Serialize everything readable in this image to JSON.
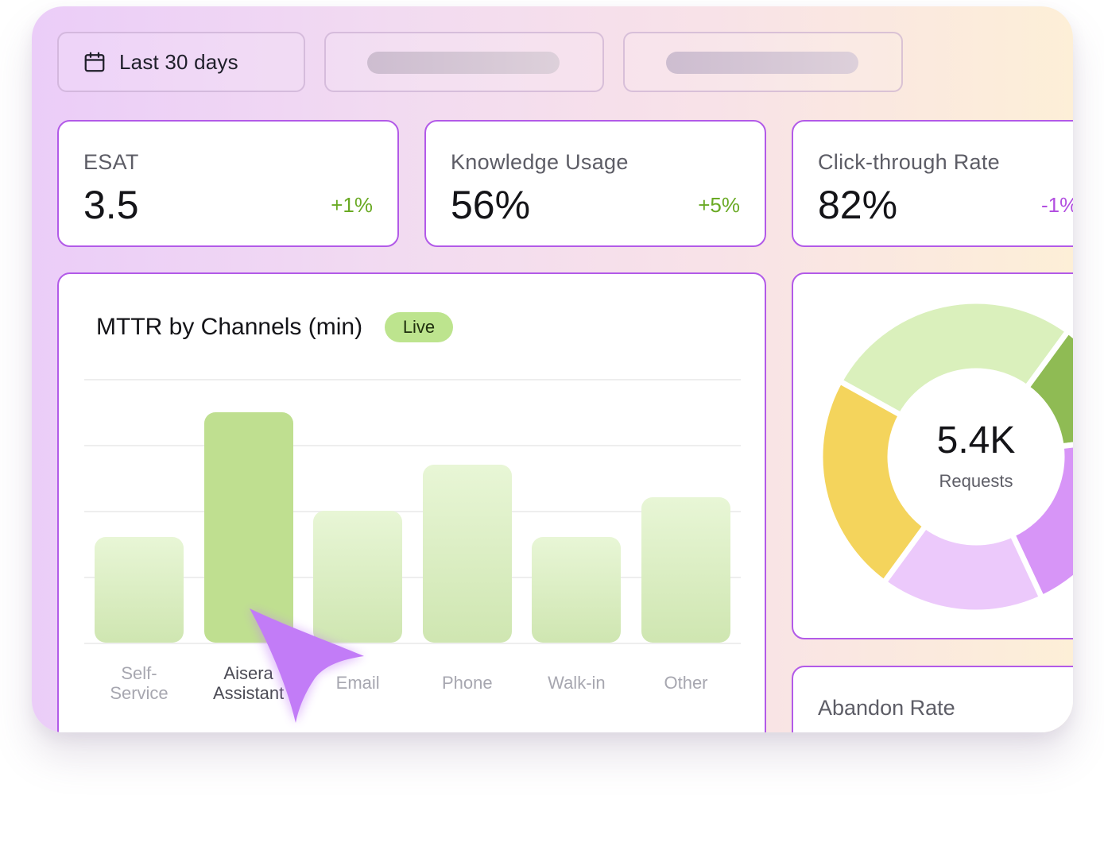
{
  "filters": {
    "date_label": "Last 30 days"
  },
  "kpis": [
    {
      "label": "ESAT",
      "value": "3.5",
      "delta": "+1%",
      "delta_color": "#6aaa24"
    },
    {
      "label": "Knowledge Usage",
      "value": "56%",
      "delta": "+5%",
      "delta_color": "#6aaa24"
    },
    {
      "label": "Click-through Rate",
      "value": "82%",
      "delta": "-1%",
      "delta_color": "#b24fe0"
    }
  ],
  "mttr_chart": {
    "title": "MTTR by Channels (min)",
    "badge": "Live",
    "xlabels": [
      "Self-\nService",
      "Aisera\nAssistant",
      "Email",
      "Phone",
      "Walk-in",
      "Other"
    ]
  },
  "chart_data": [
    {
      "type": "bar",
      "title": "MTTR by Channels (min)",
      "categories": [
        "Self-Service",
        "Aisera Assistant",
        "Email",
        "Phone",
        "Walk-in",
        "Other"
      ],
      "values": [
        1.6,
        3.5,
        2.0,
        2.7,
        1.6,
        2.2
      ],
      "ylim": [
        0,
        4
      ],
      "grid": true,
      "highlight": "Aisera Assistant"
    },
    {
      "type": "pie",
      "subtype": "donut",
      "center_value": "5.4K",
      "center_label": "Requests",
      "slices": [
        {
          "value": 27,
          "color": "#daf0bc"
        },
        {
          "value": 13,
          "color": "#8fbb54"
        },
        {
          "value": 20,
          "color": "#d795f7"
        },
        {
          "value": 17,
          "color": "#ecc9fb"
        },
        {
          "value": 23,
          "color": "#f4d45c"
        }
      ]
    }
  ],
  "donut": {
    "center_value": "5.4K",
    "center_label": "Requests"
  },
  "abandon": {
    "label": "Abandon Rate"
  },
  "colors": {
    "card_border": "#b25ae8",
    "bar_highlight": "#bfdf90",
    "badge_bg": "#bde48e",
    "cursor": "#c27cf7"
  }
}
